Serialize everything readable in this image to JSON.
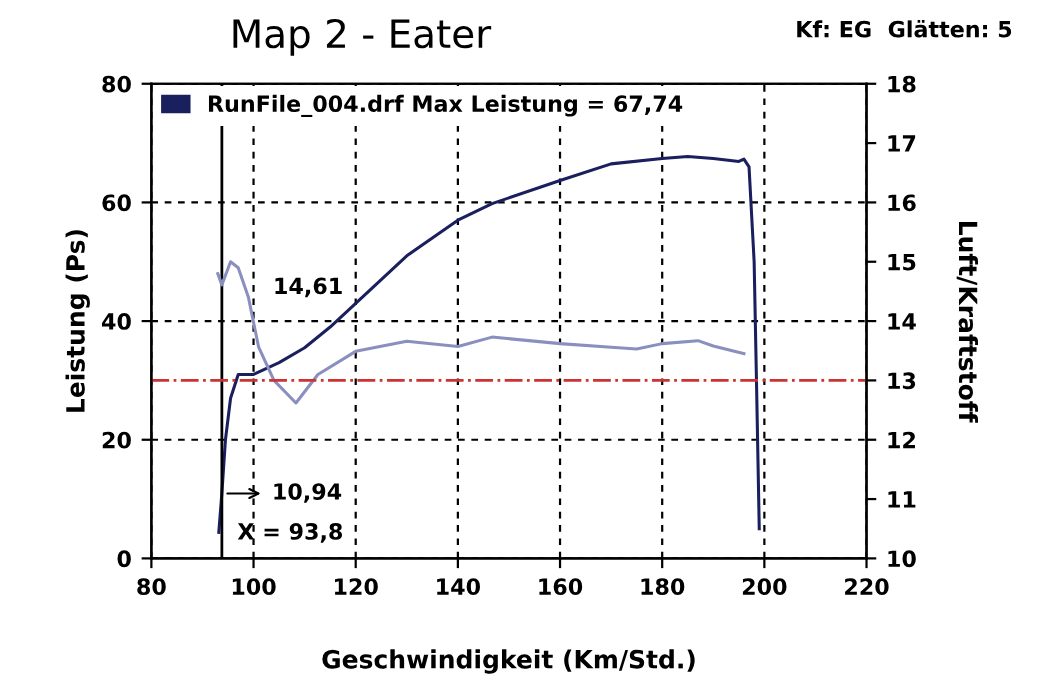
{
  "chart_data": {
    "type": "line",
    "title": "Map 2 - Eater",
    "subtitle": "Kf: EG  Glätten: 5",
    "xlabel": "Geschwindigkeit (Km/Std.)",
    "ylabel": "Leistung (Ps)",
    "y2label": "Luft/Kraftstoff",
    "xlim": [
      80,
      220
    ],
    "xticks": [
      80,
      100,
      120,
      140,
      160,
      180,
      200,
      220
    ],
    "ylim": [
      0,
      80
    ],
    "yticks": [
      0,
      20,
      40,
      60,
      80
    ],
    "y2lim": [
      10,
      18
    ],
    "y2ticks": [
      10,
      11,
      12,
      13,
      14,
      15,
      16,
      17,
      18
    ],
    "grid": true,
    "legend": "top left",
    "marker": "none",
    "line_style": "solid",
    "series": [
      {
        "name": "RunFile_004.drf Max Leistung = 67,74",
        "color": "#1a1f5e",
        "x": [
          93.2,
          93.8,
          94.5,
          95.5,
          97,
          100,
          105,
          110,
          115,
          120,
          125,
          130,
          135,
          140,
          146.7,
          160,
          170,
          180,
          185,
          190,
          195,
          196,
          197,
          198,
          198.5,
          199
        ],
        "values": [
          4.4,
          11,
          20,
          27,
          31,
          31,
          33,
          35.5,
          39,
          43,
          47,
          51,
          54,
          57,
          59.8,
          63.7,
          66.5,
          67.4,
          67.74,
          67.4,
          66.9,
          67.3,
          66,
          50,
          28,
          5
        ]
      },
      {
        "color": "#8a8fbf",
        "axis": "y2",
        "x": [
          93,
          93.8,
          95.5,
          97,
          99,
          101,
          104,
          108.3,
          112.6,
          120,
          130,
          140,
          146.7,
          160,
          170,
          175,
          180,
          187,
          190,
          196
        ],
        "values": [
          14.8,
          14.61,
          15.0,
          14.9,
          14.4,
          13.56,
          13.0,
          12.62,
          13.1,
          13.49,
          13.66,
          13.57,
          13.73,
          13.62,
          13.56,
          13.53,
          13.62,
          13.67,
          13.58,
          13.45
        ]
      }
    ],
    "ref_lines": [
      {
        "axis": "y2",
        "value": 13,
        "color": "#cc3333",
        "line_style": "dashdot"
      },
      {
        "axis": "x",
        "value": 93.8,
        "label": "X = 93,8",
        "color": "#000000",
        "line_style": "solid"
      }
    ],
    "annotations": [
      "14,61",
      {
        "text": "10,94",
        "x": 93.8,
        "y": 10.94
      }
    ]
  }
}
